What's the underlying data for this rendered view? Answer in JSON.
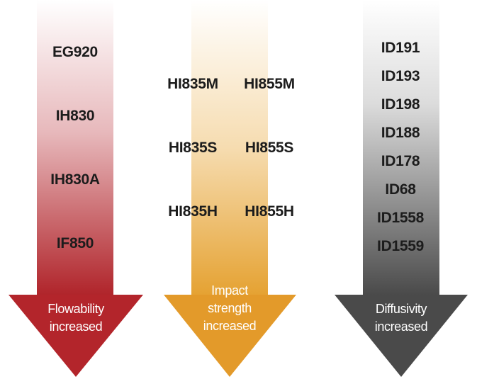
{
  "arrows": [
    {
      "caption": "Flowability\nincreased",
      "color_top": "#ffffff",
      "color_bottom": "#b0242a",
      "head_color": "#b3252b",
      "items": [
        "EG920",
        "IH830",
        "IH830A",
        "IF850"
      ]
    },
    {
      "caption": "Impact\nstrength\nincreased",
      "color_top": "#ffffff",
      "color_bottom": "#e5a232",
      "head_color": "#e39a2a",
      "items_left": [
        "HI835M",
        "HI835S",
        "HI835H"
      ],
      "items_right": [
        "HI855M",
        "HI855S",
        "HI855H"
      ]
    },
    {
      "caption": "Diffusivity\nincreased",
      "color_top": "#ffffff",
      "color_bottom": "#4a4a4a",
      "head_color": "#4a4a4a",
      "items": [
        "ID191",
        "ID193",
        "ID198",
        "ID188",
        "ID178",
        "ID68",
        "ID1558",
        "ID1559"
      ]
    }
  ]
}
